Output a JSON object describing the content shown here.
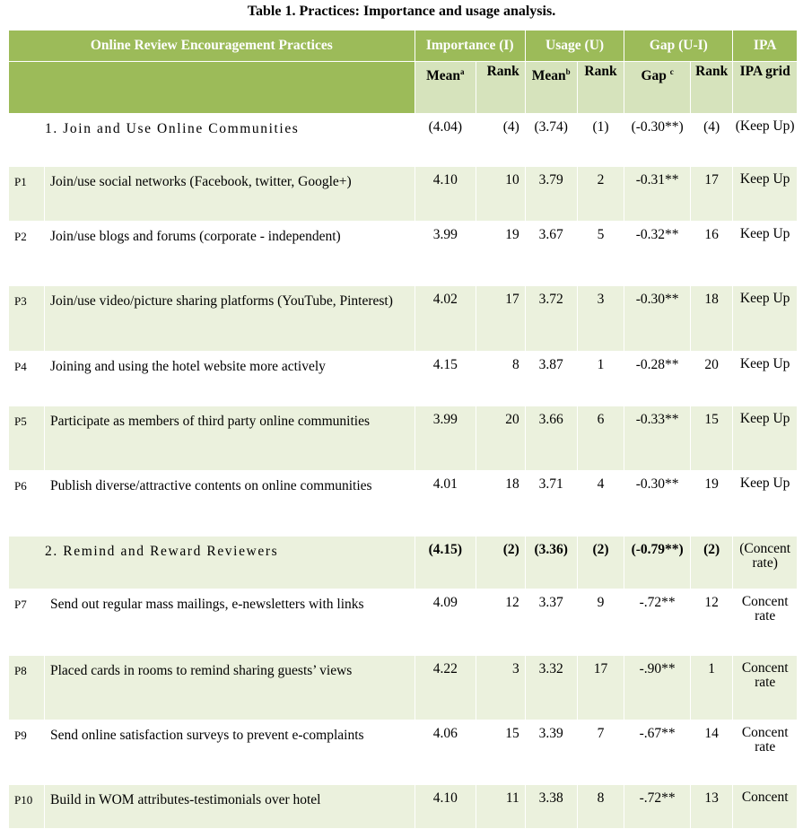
{
  "caption": "Table 1. Practices: Importance and usage analysis.",
  "header": {
    "practices": "Online Review Encouragement Practices",
    "importance": "Importance (I)",
    "usage": "Usage (U)",
    "gap": "Gap (U-I)",
    "ipa": "IPA",
    "mean_i": "Mean",
    "mean_i_sup": "a",
    "rank_i": "Rank",
    "mean_u": "Mean",
    "mean_u_sup": "b",
    "rank_u": "Rank",
    "gap_col": "Gap",
    "gap_sup": "c",
    "rank_g": "Rank",
    "ipa_grid": "IPA grid"
  },
  "categories": [
    {
      "label": "1.  Join and Use Online Communities",
      "mean_i": "(4.04)",
      "rank_i": "(4)",
      "mean_u": "(3.74)",
      "rank_u": "(1)",
      "gap": "(-0.30**)",
      "rank_g": "(4)",
      "ipa": "(Keep Up)"
    },
    {
      "label": "2.  Remind and Reward Reviewers",
      "mean_i": "(4.15)",
      "rank_i": "(2)",
      "mean_u": "(3.36)",
      "rank_u": "(2)",
      "gap": "(-0.79**)",
      "rank_g": "(2)",
      "ipa": "(Concent rate)"
    }
  ],
  "rows": [
    {
      "id": "P1",
      "desc": "Join/use social networks (Facebook, twitter, Google+)",
      "mean_i": "4.10",
      "rank_i": "10",
      "mean_u": "3.79",
      "rank_u": "2",
      "gap": "-0.31**",
      "rank_g": "17",
      "ipa": "Keep Up"
    },
    {
      "id": "P2",
      "desc": "Join/use blogs and forums (corporate - independent)",
      "mean_i": "3.99",
      "rank_i": "19",
      "mean_u": "3.67",
      "rank_u": "5",
      "gap": "-0.32**",
      "rank_g": "16",
      "ipa": "Keep Up"
    },
    {
      "id": "P3",
      "desc": "Join/use video/picture sharing platforms (YouTube, Pinterest)",
      "mean_i": "4.02",
      "rank_i": "17",
      "mean_u": "3.72",
      "rank_u": "3",
      "gap": "-0.30**",
      "rank_g": "18",
      "ipa": "Keep Up"
    },
    {
      "id": "P4",
      "desc": "Joining and using the hotel website more actively",
      "mean_i": "4.15",
      "rank_i": "8",
      "mean_u": "3.87",
      "rank_u": "1",
      "gap": "-0.28**",
      "rank_g": "20",
      "ipa": "Keep Up"
    },
    {
      "id": "P5",
      "desc": "Participate as members of third party online communities",
      "mean_i": "3.99",
      "rank_i": "20",
      "mean_u": "3.66",
      "rank_u": "6",
      "gap": "-0.33**",
      "rank_g": "15",
      "ipa": "Keep Up"
    },
    {
      "id": "P6",
      "desc": "Publish diverse/attractive contents on online communities",
      "mean_i": "4.01",
      "rank_i": "18",
      "mean_u": "3.71",
      "rank_u": "4",
      "gap": "-0.30**",
      "rank_g": "19",
      "ipa": "Keep Up"
    },
    {
      "id": "P7",
      "desc": "Send out regular mass mailings, e-newsletters with links",
      "mean_i": "4.09",
      "rank_i": "12",
      "mean_u": "3.37",
      "rank_u": "9",
      "gap": "-.72**",
      "rank_g": "12",
      "ipa": "Concent rate"
    },
    {
      "id": "P8",
      "desc": "Placed cards in rooms to remind sharing guests’ views",
      "mean_i": "4.22",
      "rank_i": "3",
      "mean_u": "3.32",
      "rank_u": "17",
      "gap": "-.90**",
      "rank_g": "1",
      "ipa": "Concent rate"
    },
    {
      "id": "P9",
      "desc": "Send online satisfaction surveys to prevent e-complaints",
      "mean_i": "4.06",
      "rank_i": "15",
      "mean_u": "3.39",
      "rank_u": "7",
      "gap": "-.67**",
      "rank_g": "14",
      "ipa": "Concent rate"
    },
    {
      "id": "P10",
      "desc": "Build in WOM attributes-testimonials over hotel",
      "mean_i": "4.10",
      "rank_i": "11",
      "mean_u": "3.38",
      "rank_u": "8",
      "gap": "-.72**",
      "rank_g": "13",
      "ipa": "Concent"
    }
  ]
}
